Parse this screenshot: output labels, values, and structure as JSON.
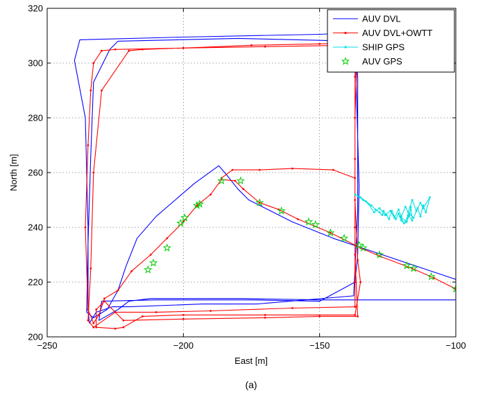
{
  "chart_data": {
    "type": "line",
    "xlabel": "East [m]",
    "ylabel": "North [m]",
    "xlim": [
      -250,
      -100
    ],
    "ylim": [
      200,
      320
    ],
    "xticks": [
      -250,
      -200,
      -150,
      -100
    ],
    "xtick_labels": [
      "−250",
      "−200",
      "−150",
      "−100"
    ],
    "yticks": [
      200,
      220,
      240,
      260,
      280,
      300,
      320
    ],
    "ytick_labels": [
      "200",
      "220",
      "240",
      "260",
      "280",
      "300",
      "320"
    ],
    "grid": true,
    "legend_position": "top-right",
    "caption": "(a)",
    "series": [
      {
        "name": "AUV DVL",
        "color": "#0000ff",
        "marker": "none",
        "x": [
          -100,
          -145,
          -160,
          -176,
          -180,
          -184,
          -187,
          -196,
          -203,
          -210,
          -217,
          -221,
          -224,
          -228,
          -233,
          -235.5,
          -235,
          -234,
          -233,
          -227,
          -224,
          -180,
          -137,
          -136,
          -136,
          -136,
          -137,
          -137.5,
          -173,
          -187,
          -193,
          -220,
          -226,
          -232,
          -234.5,
          -235,
          -235,
          -236,
          -240,
          -238,
          -200,
          -150,
          -137,
          -136.5,
          -135.5,
          -136,
          -137,
          -150,
          -175,
          -210,
          -230,
          -231,
          -224,
          -220,
          -212,
          -200,
          -185,
          -178,
          -150,
          -100
        ],
        "y": [
          221,
          236,
          242,
          250,
          254,
          259,
          262.5,
          256,
          250,
          244,
          236,
          226,
          217,
          210,
          207,
          209,
          234,
          266,
          293,
          305,
          308,
          309,
          308,
          295,
          270,
          246,
          225,
          215,
          212,
          212,
          212,
          211,
          211,
          209,
          205,
          210,
          240,
          280,
          301,
          308.5,
          309.5,
          310.5,
          311,
          290,
          255,
          230,
          220,
          213,
          213.5,
          213.5,
          213,
          206,
          210,
          213,
          214,
          214,
          214,
          214,
          213.5,
          213.5
        ]
      },
      {
        "name": "AUV DVL+OWTT",
        "color": "#ff0000",
        "marker": "dot",
        "x": [
          -100,
          -108,
          -116,
          -128,
          -135,
          -146,
          -158,
          -165,
          -172,
          -178,
          -181,
          -186,
          -190,
          -195,
          -200,
          -206,
          -212,
          -219,
          -224,
          -229,
          -231,
          -233,
          -235,
          -236,
          -235,
          -234,
          -233,
          -230,
          -225,
          -200,
          -170,
          -140,
          -137,
          -137,
          -137,
          -137,
          -137,
          -137,
          -160,
          -190,
          -210,
          -225,
          -233,
          -235,
          -234,
          -233,
          -230,
          -220,
          -215,
          -200,
          -175,
          -150,
          -136,
          -137,
          -137,
          -136,
          -135,
          -137,
          -170,
          -200,
          -215,
          -222,
          -225,
          -232,
          -232,
          -229,
          -222,
          -200,
          -170,
          -150,
          -136,
          -137,
          -137,
          -145,
          -160,
          -172,
          -182,
          -186
        ],
        "y": [
          217.5,
          221.5,
          225,
          229.5,
          232.5,
          238,
          243,
          246.5,
          249,
          254,
          257,
          257.5,
          252,
          248,
          242,
          236,
          230,
          224,
          217,
          214,
          208,
          205,
          210,
          240,
          270,
          290,
          300,
          304.5,
          305,
          305.5,
          306,
          306.5,
          307,
          295,
          265,
          240,
          220,
          211,
          210.5,
          209.5,
          209,
          209,
          203.5,
          206,
          225,
          260,
          290,
          304.5,
          305,
          305.5,
          306.5,
          307,
          307.5,
          280,
          250,
          228,
          220,
          208,
          208,
          208,
          207.5,
          203.5,
          203,
          203.5,
          210,
          213,
          206,
          206.5,
          207,
          207.5,
          207.5,
          230,
          258,
          261,
          261.5,
          261,
          261,
          258
        ]
      },
      {
        "name": "SHIP GPS",
        "color": "#00e0e0",
        "marker": "dot",
        "x": [
          -137,
          -135,
          -133,
          -131,
          -129.5,
          -128,
          -127,
          -126.5,
          -125.5,
          -124.5,
          -123.5,
          -122,
          -121,
          -120,
          -119,
          -120.5,
          -118,
          -117,
          -116.5,
          -116,
          -117.5,
          -118.5,
          -117,
          -115.5,
          -114,
          -113,
          -112,
          -111,
          -109.5,
          -112,
          -113,
          -114.5,
          -116,
          -117.5,
          -118.5,
          -120,
          -121,
          -122.5,
          -124,
          -126,
          -128,
          -130,
          -132,
          -134,
          -136
        ],
        "y": [
          252,
          251,
          249.5,
          248,
          246.5,
          245.5,
          244.5,
          246,
          244.5,
          243,
          246,
          243,
          245,
          242.5,
          241.5,
          244,
          242,
          244.5,
          247.5,
          242.5,
          244.5,
          242,
          245,
          243.5,
          247,
          244,
          248,
          245.5,
          251,
          247,
          249,
          246,
          250,
          245.5,
          247.5,
          244,
          246.5,
          243.5,
          246,
          244.5,
          247,
          245.5,
          248.5,
          250,
          251.5
        ]
      },
      {
        "name": "AUV GPS",
        "color": "#00cc00",
        "marker": "star",
        "x": [
          -100,
          -109,
          -115.5,
          -118,
          -128,
          -134,
          -135.5,
          -141,
          -146,
          -151.5,
          -154,
          -164,
          -172,
          -179,
          -186,
          -194,
          -195,
          -199.5,
          -201,
          -206,
          -211,
          -213
        ],
        "y": [
          217.5,
          222,
          225,
          226,
          230,
          232.5,
          233.5,
          236,
          238,
          241,
          242,
          246,
          249,
          257,
          257,
          248.5,
          248,
          243.5,
          241.5,
          232.5,
          227,
          224.5
        ]
      }
    ]
  }
}
